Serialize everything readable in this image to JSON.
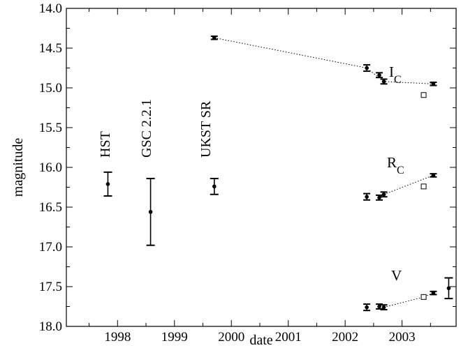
{
  "chart_data": {
    "type": "scatter",
    "xlabel": "date",
    "ylabel": "magnitude",
    "xlim": [
      1997.1,
      2003.95
    ],
    "ylim": [
      18.0,
      14.0
    ],
    "y_inverted": true,
    "grid": false,
    "x_ticks": [
      1998,
      1999,
      2000,
      2001,
      2002,
      2003
    ],
    "x_tick_labels": [
      "1998",
      "1999",
      "2000",
      "2001",
      "2002",
      "2003"
    ],
    "y_ticks": [
      14.0,
      14.5,
      15.0,
      15.5,
      16.0,
      16.5,
      17.0,
      17.5,
      18.0
    ],
    "y_tick_labels": [
      "14.0",
      "14.5",
      "15.0",
      "15.5",
      "16.0",
      "16.5",
      "17.0",
      "17.5",
      "18.0"
    ],
    "archive_points": [
      {
        "label": "HST",
        "x": 1997.83,
        "y": 16.21,
        "err": 0.15
      },
      {
        "label": "GSC 2.2.1",
        "x": 1998.58,
        "y": 16.56,
        "err": 0.42
      },
      {
        "label": "UKST SR",
        "x": 1999.7,
        "y": 16.24,
        "err": 0.1
      }
    ],
    "series": [
      {
        "name": "I",
        "name_sub": "C",
        "points": [
          {
            "x": 1999.7,
            "y": 14.37,
            "err": 0.02
          },
          {
            "x": 2002.38,
            "y": 14.75,
            "err": 0.04
          },
          {
            "x": 2002.6,
            "y": 14.84,
            "err": 0.03
          },
          {
            "x": 2002.68,
            "y": 14.92,
            "err": 0.03
          },
          {
            "x": 2003.55,
            "y": 14.95,
            "err": 0.02
          }
        ],
        "open_points": [
          {
            "x": 2003.38,
            "y": 15.09
          }
        ],
        "dotted_line": [
          [
            1999.7,
            14.37
          ],
          [
            2002.38,
            14.75
          ],
          [
            2002.68,
            14.92
          ],
          [
            2003.55,
            14.95
          ]
        ]
      },
      {
        "name": "R",
        "name_sub": "C",
        "points": [
          {
            "x": 2002.38,
            "y": 16.37,
            "err": 0.04
          },
          {
            "x": 2002.6,
            "y": 16.38,
            "err": 0.03
          },
          {
            "x": 2002.68,
            "y": 16.34,
            "err": 0.03
          },
          {
            "x": 2003.55,
            "y": 16.1,
            "err": 0.02
          }
        ],
        "open_points": [
          {
            "x": 2003.38,
            "y": 16.24
          }
        ],
        "dotted_line": [
          [
            2002.68,
            16.34
          ],
          [
            2003.55,
            16.1
          ]
        ]
      },
      {
        "name": "V",
        "name_sub": "",
        "points": [
          {
            "x": 2002.38,
            "y": 17.76,
            "err": 0.04
          },
          {
            "x": 2002.6,
            "y": 17.75,
            "err": 0.03
          },
          {
            "x": 2002.68,
            "y": 17.76,
            "err": 0.03
          },
          {
            "x": 2003.55,
            "y": 17.58,
            "err": 0.02
          },
          {
            "x": 2003.82,
            "y": 17.52,
            "err": 0.13
          }
        ],
        "open_points": [
          {
            "x": 2003.38,
            "y": 17.63
          }
        ],
        "dotted_line": [
          [
            2002.68,
            17.76
          ],
          [
            2003.38,
            17.63
          ],
          [
            2003.55,
            17.58
          ]
        ]
      }
    ]
  }
}
